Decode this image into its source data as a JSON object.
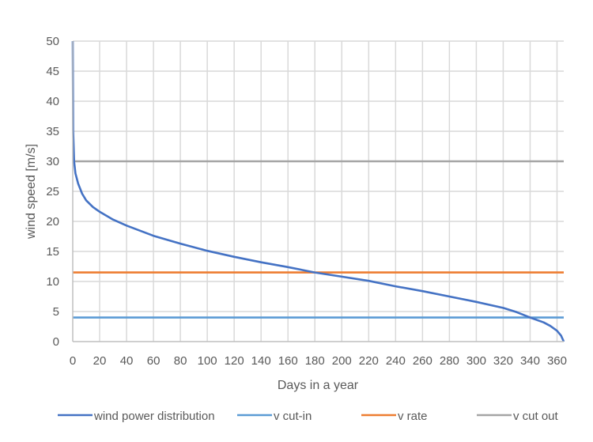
{
  "chart_data": {
    "type": "line",
    "title": "",
    "xlabel": "Days in a year",
    "ylabel": "wind speed [m/s]",
    "xlim": [
      0,
      365
    ],
    "ylim": [
      0,
      50
    ],
    "x_ticks": [
      0,
      20,
      40,
      60,
      80,
      100,
      120,
      140,
      160,
      180,
      200,
      220,
      240,
      260,
      280,
      300,
      320,
      340,
      360
    ],
    "y_ticks": [
      0,
      5,
      10,
      15,
      20,
      25,
      30,
      35,
      40,
      45,
      50
    ],
    "grid": true,
    "legend_position": "bottom",
    "series": [
      {
        "name": "wind power distribution",
        "color": "#4472C4",
        "x": [
          0,
          0.3,
          1,
          2,
          4,
          7,
          10,
          15,
          20,
          30,
          40,
          60,
          80,
          100,
          120,
          140,
          160,
          180,
          200,
          220,
          240,
          260,
          280,
          300,
          320,
          330,
          340,
          350,
          355,
          360,
          363,
          365
        ],
        "y": [
          50,
          35,
          30,
          28,
          26.3,
          24.6,
          23.5,
          22.4,
          21.6,
          20.3,
          19.3,
          17.6,
          16.3,
          15.1,
          14.1,
          13.2,
          12.4,
          11.5,
          10.8,
          10.1,
          9.2,
          8.4,
          7.5,
          6.6,
          5.6,
          4.9,
          4.0,
          3.2,
          2.6,
          1.8,
          1.0,
          0
        ]
      },
      {
        "name": "v cut-in",
        "color": "#5B9BD5",
        "x": [
          0,
          365
        ],
        "y": [
          4,
          4
        ]
      },
      {
        "name": "v rate",
        "color": "#ED7D31",
        "x": [
          0,
          365
        ],
        "y": [
          11.5,
          11.5
        ]
      },
      {
        "name": "v cut out",
        "color": "#A5A5A5",
        "x": [
          0,
          365
        ],
        "y": [
          30,
          30
        ]
      }
    ]
  }
}
